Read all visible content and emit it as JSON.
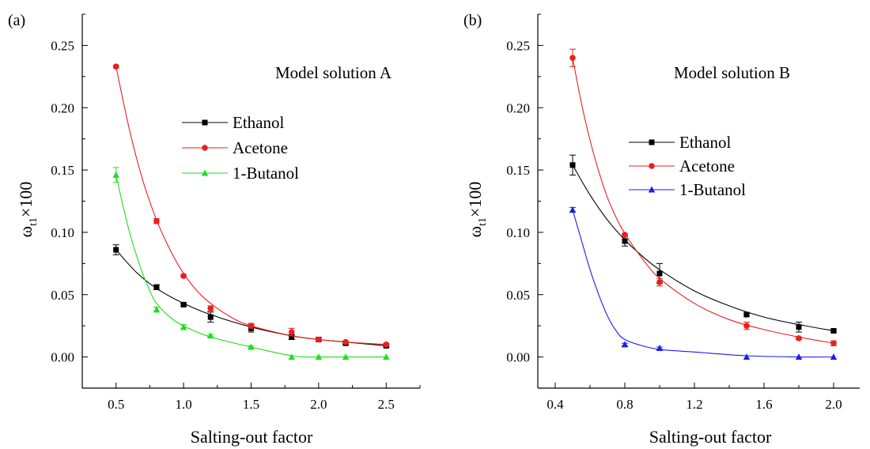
{
  "figure": {
    "panels": [
      {
        "panel_label": "(a)",
        "title": "Model solution A",
        "xlabel": "Salting-out factor",
        "ylabel_main": "ω",
        "ylabel_sub": "t1",
        "ylabel_suffix": "×100"
      },
      {
        "panel_label": "(b)",
        "title": "Model solution B",
        "xlabel": "Salting-out factor",
        "ylabel_main": "ω",
        "ylabel_sub": "t1",
        "ylabel_suffix": "×100"
      }
    ]
  },
  "chart_data": [
    {
      "type": "scatter",
      "title": "Model solution A",
      "xlabel": "Salting-out factor",
      "ylabel": "ωt1×100",
      "xlim": [
        0.25,
        2.75
      ],
      "ylim": [
        -0.025,
        0.275
      ],
      "xticks": [
        0.5,
        1.0,
        1.5,
        2.0,
        2.5
      ],
      "xtick_labels": [
        "0.5",
        "1.0",
        "1.5",
        "2.0",
        "2.5"
      ],
      "yticks": [
        0.0,
        0.05,
        0.1,
        0.15,
        0.2,
        0.25
      ],
      "ytick_labels": [
        "0.00",
        "0.05",
        "0.10",
        "0.15",
        "0.20",
        "0.25"
      ],
      "legend_position": "center-right",
      "series": [
        {
          "name": "Ethanol",
          "color": "#000000",
          "marker": "square",
          "x": [
            0.5,
            0.8,
            1.0,
            1.2,
            1.5,
            1.8,
            2.0,
            2.2,
            2.5
          ],
          "y": [
            0.086,
            0.056,
            0.042,
            0.032,
            0.023,
            0.016,
            0.014,
            0.011,
            0.009
          ],
          "err": [
            0.004,
            0.002,
            0.001,
            0.004,
            0.003,
            0.002,
            0.001,
            0.001,
            0.001
          ],
          "fit": [
            [
              0.5,
              0.086
            ],
            [
              0.65,
              0.068
            ],
            [
              0.8,
              0.055
            ],
            [
              1.0,
              0.043
            ],
            [
              1.2,
              0.034
            ],
            [
              1.5,
              0.024
            ],
            [
              1.8,
              0.017
            ],
            [
              2.0,
              0.014
            ],
            [
              2.2,
              0.012
            ],
            [
              2.5,
              0.009
            ]
          ]
        },
        {
          "name": "Acetone",
          "color": "#e8211e",
          "marker": "circle",
          "x": [
            0.5,
            0.8,
            1.0,
            1.2,
            1.5,
            1.8,
            2.0,
            2.2,
            2.5
          ],
          "y": [
            0.233,
            0.109,
            0.065,
            0.039,
            0.025,
            0.02,
            0.014,
            0.012,
            0.01
          ],
          "err": [
            0.001,
            0.002,
            0.001,
            0.002,
            0.002,
            0.003,
            0.001,
            0.001,
            0.001
          ],
          "fit": [
            [
              0.5,
              0.233
            ],
            [
              0.6,
              0.182
            ],
            [
              0.7,
              0.141
            ],
            [
              0.8,
              0.11
            ],
            [
              0.9,
              0.086
            ],
            [
              1.0,
              0.067
            ],
            [
              1.1,
              0.053
            ],
            [
              1.2,
              0.043
            ],
            [
              1.35,
              0.032
            ],
            [
              1.5,
              0.025
            ],
            [
              1.8,
              0.017
            ],
            [
              2.0,
              0.014
            ],
            [
              2.2,
              0.012
            ],
            [
              2.5,
              0.01
            ]
          ]
        },
        {
          "name": "1-Butanol",
          "color": "#22dd1f",
          "marker": "triangle",
          "x": [
            0.5,
            0.8,
            1.0,
            1.2,
            1.5,
            1.8,
            2.0,
            2.2,
            2.5
          ],
          "y": [
            0.146,
            0.038,
            0.024,
            0.017,
            0.008,
            0.0,
            0.0,
            0.0,
            0.0
          ],
          "err": [
            0.006,
            0.002,
            0.002,
            0.001,
            0.001,
            0.0,
            0.0,
            0.0,
            0.0
          ],
          "fit": [
            [
              0.5,
              0.146
            ],
            [
              0.55,
              0.122
            ],
            [
              0.6,
              0.1
            ],
            [
              0.65,
              0.082
            ],
            [
              0.7,
              0.066
            ],
            [
              0.75,
              0.053
            ],
            [
              0.8,
              0.043
            ],
            [
              0.9,
              0.032
            ],
            [
              1.0,
              0.025
            ],
            [
              1.2,
              0.016
            ],
            [
              1.5,
              0.008
            ],
            [
              1.8,
              0.001
            ],
            [
              2.0,
              0.0
            ],
            [
              2.5,
              0.0
            ]
          ]
        }
      ]
    },
    {
      "type": "scatter",
      "title": "Model solution B",
      "xlabel": "Salting-out factor",
      "ylabel": "ωt1×100",
      "xlim": [
        0.3,
        2.15
      ],
      "ylim": [
        -0.025,
        0.275
      ],
      "xticks": [
        0.4,
        0.8,
        1.2,
        1.6,
        2.0
      ],
      "xtick_labels": [
        "0.4",
        "0.8",
        "1.2",
        "1.6",
        "2.0"
      ],
      "yticks": [
        0.0,
        0.05,
        0.1,
        0.15,
        0.2,
        0.25
      ],
      "ytick_labels": [
        "0.00",
        "0.05",
        "0.10",
        "0.15",
        "0.20",
        "0.25"
      ],
      "legend_position": "center-right",
      "series": [
        {
          "name": "Ethanol",
          "color": "#000000",
          "marker": "square",
          "x": [
            0.5,
            0.8,
            1.0,
            1.5,
            1.8,
            2.0
          ],
          "y": [
            0.154,
            0.093,
            0.067,
            0.034,
            0.024,
            0.021
          ],
          "err": [
            0.008,
            0.004,
            0.008,
            0.001,
            0.004,
            0.001
          ],
          "fit": [
            [
              0.5,
              0.154
            ],
            [
              0.6,
              0.13
            ],
            [
              0.7,
              0.11
            ],
            [
              0.8,
              0.094
            ],
            [
              0.9,
              0.081
            ],
            [
              1.0,
              0.07
            ],
            [
              1.2,
              0.053
            ],
            [
              1.4,
              0.041
            ],
            [
              1.6,
              0.032
            ],
            [
              1.8,
              0.026
            ],
            [
              2.0,
              0.021
            ]
          ]
        },
        {
          "name": "Acetone",
          "color": "#e8211e",
          "marker": "circle",
          "x": [
            0.5,
            0.8,
            1.0,
            1.5,
            1.8,
            2.0
          ],
          "y": [
            0.24,
            0.098,
            0.06,
            0.025,
            0.015,
            0.011
          ],
          "err": [
            0.007,
            0.001,
            0.003,
            0.003,
            0.001,
            0.002
          ],
          "fit": [
            [
              0.5,
              0.24
            ],
            [
              0.55,
              0.204
            ],
            [
              0.6,
              0.174
            ],
            [
              0.65,
              0.149
            ],
            [
              0.7,
              0.128
            ],
            [
              0.75,
              0.112
            ],
            [
              0.8,
              0.099
            ],
            [
              0.9,
              0.079
            ],
            [
              1.0,
              0.063
            ],
            [
              1.2,
              0.043
            ],
            [
              1.4,
              0.03
            ],
            [
              1.6,
              0.022
            ],
            [
              1.8,
              0.016
            ],
            [
              2.0,
              0.011
            ]
          ]
        },
        {
          "name": "1-Butanol",
          "color": "#1c1cf0",
          "marker": "triangle",
          "x": [
            0.5,
            0.8,
            1.0,
            1.5,
            1.8,
            2.0
          ],
          "y": [
            0.118,
            0.01,
            0.007,
            0.0,
            0.0,
            0.0
          ],
          "err": [
            0.002,
            0.001,
            0.001,
            0.0,
            0.0,
            0.0
          ],
          "fit": [
            [
              0.5,
              0.118
            ],
            [
              0.55,
              0.094
            ],
            [
              0.6,
              0.07
            ],
            [
              0.65,
              0.05
            ],
            [
              0.7,
              0.033
            ],
            [
              0.75,
              0.021
            ],
            [
              0.8,
              0.014
            ],
            [
              0.9,
              0.009
            ],
            [
              1.0,
              0.006
            ],
            [
              1.2,
              0.004
            ],
            [
              1.5,
              0.001
            ],
            [
              1.8,
              0.0
            ],
            [
              2.0,
              0.0
            ]
          ]
        }
      ]
    }
  ]
}
